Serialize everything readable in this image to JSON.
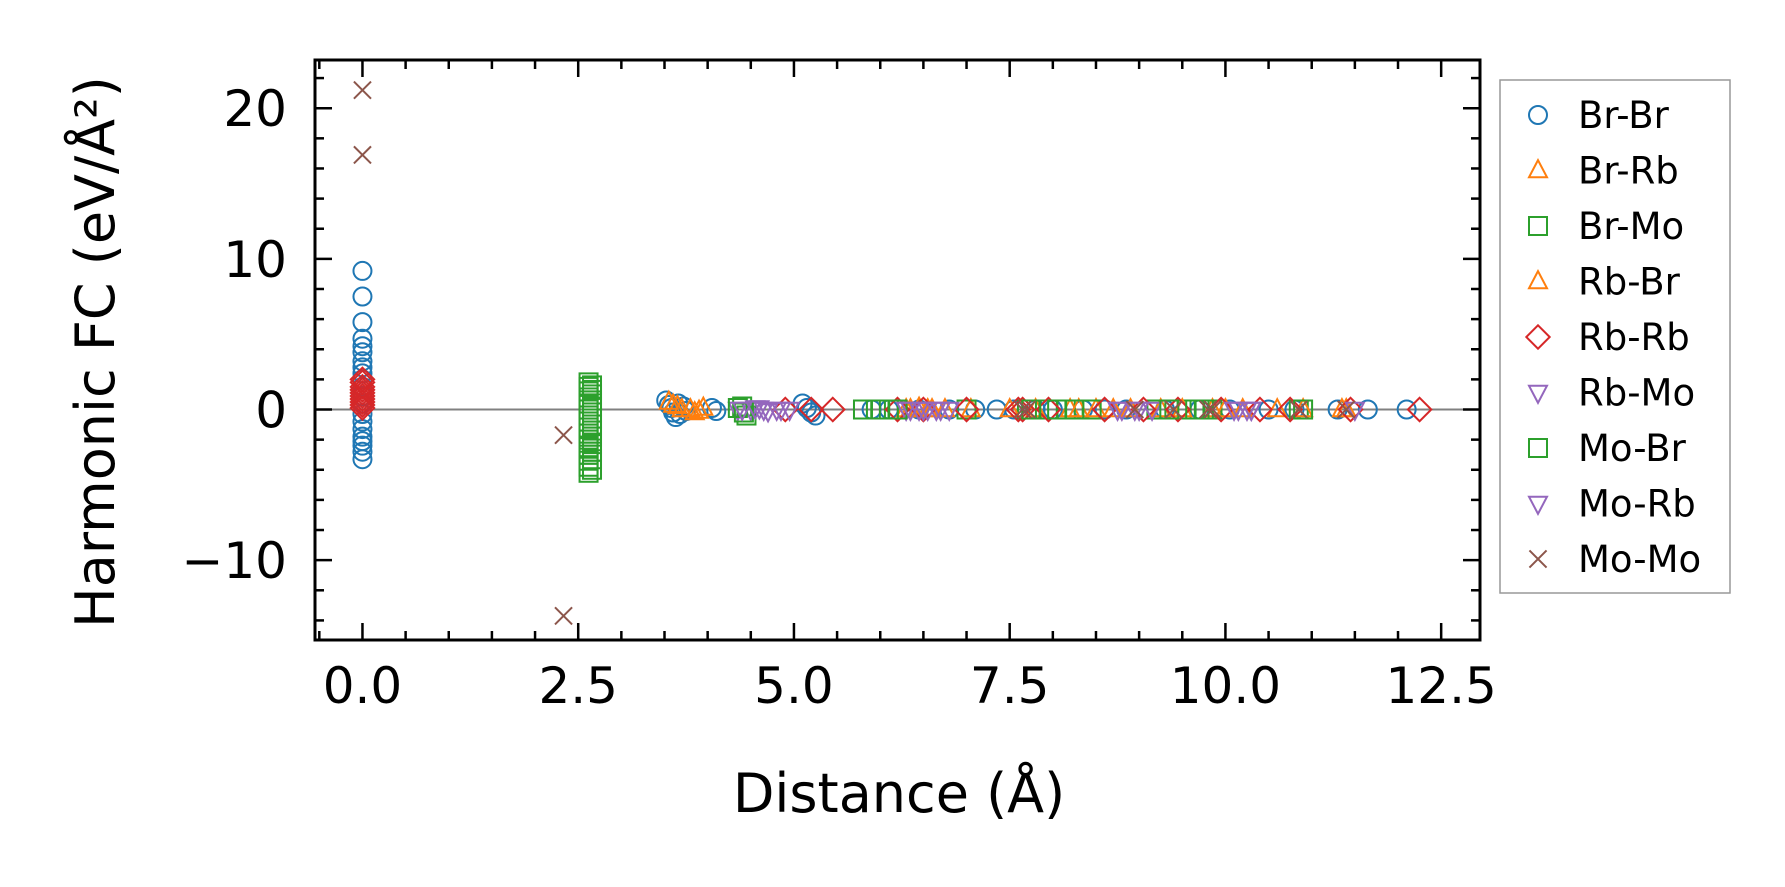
{
  "chart_data": {
    "type": "scatter",
    "title": "",
    "xlabel": "Distance (Å)",
    "ylabel": "Harmonic FC (eV/Å²)",
    "xlim": [
      -0.55,
      12.95
    ],
    "ylim": [
      -15.3,
      23.2
    ],
    "x_ticks": [
      0.0,
      2.5,
      5.0,
      7.5,
      10.0,
      12.5
    ],
    "x_tick_labels": [
      "0.0",
      "2.5",
      "5.0",
      "7.5",
      "10.0",
      "12.5"
    ],
    "y_ticks": [
      -10,
      0,
      10,
      20
    ],
    "y_tick_labels": [
      "−10",
      "0",
      "10",
      "20"
    ],
    "zero_line": true,
    "grid": false,
    "legend_position": "outside-right",
    "series": [
      {
        "name": "Br-Br",
        "marker": "circle",
        "color": "#1f77b4",
        "x": [
          0,
          0,
          0,
          0,
          0,
          0,
          0,
          0,
          0,
          0,
          0,
          0,
          0,
          0,
          0,
          0,
          0,
          0,
          0,
          0,
          0,
          3.52,
          3.55,
          3.58,
          3.6,
          3.63,
          3.66,
          3.68,
          3.72,
          3.75,
          4.05,
          4.1,
          5.1,
          5.15,
          5.2,
          5.25,
          5.9,
          6.1,
          6.45,
          6.8,
          7.1,
          7.35,
          7.55,
          7.8,
          8.0,
          8.35,
          8.6,
          8.85,
          9.3,
          9.7,
          10.05,
          10.5,
          10.8,
          11.3,
          11.65,
          12.1
        ],
        "y": [
          9.2,
          7.5,
          5.8,
          4.7,
          4.2,
          3.8,
          3.2,
          2.8,
          2.4,
          2.0,
          1.5,
          0.9,
          0.4,
          -0.3,
          -0.8,
          -1.3,
          -1.8,
          -2.1,
          -2.4,
          -2.8,
          -3.3,
          0.6,
          0.3,
          0.1,
          -0.2,
          -0.5,
          0.4,
          -0.3,
          0.2,
          -0.1,
          0.1,
          -0.1,
          0.4,
          0.1,
          -0.2,
          -0.4,
          0,
          0,
          0,
          0,
          0,
          0,
          0,
          0,
          0,
          0,
          0,
          0,
          0,
          0,
          0,
          0,
          0,
          0,
          0,
          0
        ]
      },
      {
        "name": "Br-Rb",
        "marker": "triangle-up",
        "color": "#ff7f0e",
        "x": [
          3.55,
          3.65,
          3.8,
          3.85,
          3.95,
          6.3,
          6.45,
          6.6,
          6.75,
          7.05,
          7.8,
          8.2,
          8.5,
          8.9,
          9.25,
          9.85,
          10.2,
          10.6,
          11.35
        ],
        "y": [
          0.5,
          0.2,
          0.0,
          -0.2,
          0.1,
          0,
          0.1,
          0,
          0,
          0,
          0,
          0,
          0,
          0,
          0,
          0,
          0,
          0,
          0
        ]
      },
      {
        "name": "Br-Mo",
        "marker": "square",
        "color": "#2ca02c",
        "x": [
          2.62,
          2.62,
          2.62,
          2.62,
          2.62,
          2.62,
          2.62,
          2.62,
          2.62,
          2.62,
          2.62,
          2.62,
          2.62,
          2.62,
          2.62,
          2.62,
          4.4,
          4.45,
          5.8,
          5.95,
          6.1,
          7.0,
          7.7,
          7.95,
          8.15,
          8.45,
          9.2,
          9.55,
          9.7,
          9.85,
          10.85
        ],
        "y": [
          1.8,
          1.5,
          1.2,
          0.8,
          0.4,
          0.0,
          -0.4,
          -0.8,
          -1.2,
          -1.6,
          -2.0,
          -2.5,
          -3.0,
          -3.4,
          -3.8,
          -4.2,
          0.2,
          -0.4,
          0,
          0,
          0,
          0,
          0,
          0,
          0,
          0,
          0,
          0,
          0,
          0,
          0
        ]
      },
      {
        "name": "Rb-Br",
        "marker": "triangle-up",
        "color": "#ff7f0e",
        "x": [
          3.6,
          3.7,
          3.9,
          6.35,
          6.55,
          7.5,
          8.3,
          8.7,
          9.5,
          10.0,
          10.9,
          11.4
        ],
        "y": [
          0.3,
          0,
          -0.1,
          0,
          0,
          0,
          0,
          0,
          0,
          0,
          0,
          0
        ]
      },
      {
        "name": "Rb-Rb",
        "marker": "diamond",
        "color": "#d62728",
        "x": [
          0,
          0,
          0,
          0,
          0,
          0,
          0,
          0,
          0,
          0,
          4.9,
          5.2,
          5.45,
          6.2,
          6.5,
          7.0,
          7.6,
          7.65,
          7.95,
          8.6,
          9.05,
          9.45,
          9.95,
          10.4,
          10.75,
          11.45,
          12.25
        ],
        "y": [
          2.0,
          1.8,
          1.5,
          1.3,
          1.1,
          0.9,
          0.7,
          0.5,
          0.3,
          0.1,
          0,
          0,
          0,
          0,
          0,
          0,
          0,
          0,
          0,
          0,
          0,
          0,
          0,
          0,
          0,
          0,
          0
        ]
      },
      {
        "name": "Rb-Mo",
        "marker": "triangle-down",
        "color": "#9467bd",
        "x": [
          4.35,
          4.5,
          4.6,
          4.7,
          4.8,
          4.95,
          6.3,
          6.45,
          6.55,
          6.7,
          6.8,
          8.8,
          9.0,
          9.15,
          10.15,
          10.25,
          10.3
        ],
        "y": [
          0,
          0,
          0.1,
          -0.1,
          0,
          0,
          0,
          0,
          0,
          0,
          0,
          0,
          0,
          0,
          0,
          0,
          0
        ]
      },
      {
        "name": "Mo-Br",
        "marker": "square",
        "color": "#2ca02c",
        "x": [
          2.66,
          2.66,
          2.66,
          2.66,
          2.66,
          2.66,
          2.66,
          2.66,
          2.66,
          2.66,
          2.66,
          2.66,
          2.66,
          2.66,
          4.35,
          4.42,
          6.0,
          6.2,
          7.75,
          8.05,
          8.25,
          9.35,
          9.65,
          9.75,
          10.9
        ],
        "y": [
          1.6,
          1.3,
          1.0,
          0.6,
          0.2,
          -0.2,
          -0.6,
          -1.0,
          -1.4,
          -1.8,
          -2.3,
          -2.8,
          -3.3,
          -4.0,
          0.1,
          -0.2,
          0,
          0,
          0,
          0,
          0,
          0,
          0,
          0,
          0
        ]
      },
      {
        "name": "Mo-Rb",
        "marker": "triangle-down",
        "color": "#9467bd",
        "x": [
          4.4,
          4.55,
          4.65,
          4.85,
          6.35,
          6.5,
          6.65,
          8.75,
          8.95,
          10.1,
          10.3,
          11.5
        ],
        "y": [
          0,
          0.1,
          0,
          0,
          0,
          0,
          0,
          0,
          0,
          0,
          0,
          0
        ]
      },
      {
        "name": "Mo-Mo",
        "marker": "x",
        "color": "#8c564b",
        "x": [
          0,
          0,
          2.33,
          2.33,
          7.65,
          7.7,
          8.95,
          9.4,
          9.8,
          9.85,
          10.85,
          11.4
        ],
        "y": [
          21.2,
          16.9,
          -1.7,
          -13.7,
          0,
          0,
          0,
          0,
          0,
          0,
          0,
          0
        ]
      }
    ]
  }
}
